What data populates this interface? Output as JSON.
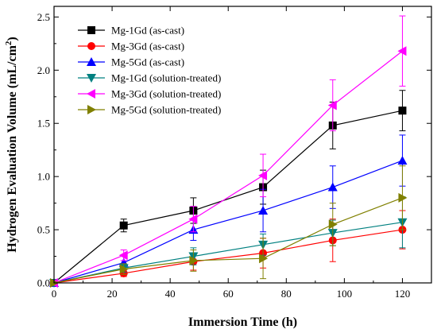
{
  "chart_data": {
    "type": "line",
    "xlabel": "Immersion Time (h)",
    "ylabel_main": "Hydrogen Evaluation Volume (mL/cm",
    "ylabel_sup": "2",
    "ylabel_tail": ")",
    "xlim": [
      0,
      130
    ],
    "ylim": [
      0,
      2.6
    ],
    "xticks": [
      0,
      20,
      40,
      60,
      80,
      100,
      120
    ],
    "yticks": [
      0.0,
      0.5,
      1.0,
      1.5,
      2.0,
      2.5
    ],
    "ytick_labels": [
      "0.0",
      "0.5",
      "1.0",
      "1.5",
      "2.0",
      "2.5"
    ],
    "legend_position": "top-left",
    "series": [
      {
        "name": "Mg-1Gd (as-cast)",
        "color": "#000000",
        "marker": "square",
        "x": [
          0,
          24,
          48,
          72,
          96,
          120
        ],
        "y": [
          0,
          0.54,
          0.68,
          0.9,
          1.48,
          1.62
        ],
        "err": [
          0,
          0.06,
          0.12,
          0.16,
          0.22,
          0.19
        ]
      },
      {
        "name": "Mg-3Gd (as-cast)",
        "color": "#ff0000",
        "marker": "circle",
        "x": [
          0,
          24,
          48,
          72,
          96,
          120
        ],
        "y": [
          0,
          0.09,
          0.2,
          0.28,
          0.4,
          0.5
        ],
        "err": [
          0,
          0.03,
          0.08,
          0.14,
          0.2,
          0.18
        ]
      },
      {
        "name": "Mg-5Gd (as-cast)",
        "color": "#0000ff",
        "marker": "triangle-up",
        "x": [
          0,
          24,
          48,
          72,
          96,
          120
        ],
        "y": [
          0,
          0.19,
          0.5,
          0.68,
          0.9,
          1.15
        ],
        "err": [
          0,
          0.06,
          0.1,
          0.2,
          0.2,
          0.24
        ]
      },
      {
        "name": "Mg-1Gd (solution-treated)",
        "color": "#008080",
        "marker": "triangle-down",
        "x": [
          0,
          24,
          48,
          72,
          96,
          120
        ],
        "y": [
          0,
          0.14,
          0.25,
          0.36,
          0.47,
          0.57
        ],
        "err": [
          0,
          0.04,
          0.08,
          0.1,
          0.12,
          0.24
        ]
      },
      {
        "name": "Mg-3Gd (solution-treated)",
        "color": "#ff00ff",
        "marker": "triangle-left",
        "x": [
          0,
          24,
          48,
          72,
          96,
          120
        ],
        "y": [
          0,
          0.26,
          0.6,
          1.01,
          1.67,
          2.18
        ],
        "err": [
          0,
          0.05,
          0.12,
          0.2,
          0.24,
          0.33
        ]
      },
      {
        "name": "Mg-5Gd (solution-treated)",
        "color": "#808000",
        "marker": "triangle-right",
        "x": [
          0,
          24,
          48,
          72,
          96,
          120
        ],
        "y": [
          0,
          0.13,
          0.21,
          0.23,
          0.55,
          0.8
        ],
        "err": [
          0,
          0.05,
          0.1,
          0.19,
          0.2,
          0.3
        ]
      }
    ]
  }
}
